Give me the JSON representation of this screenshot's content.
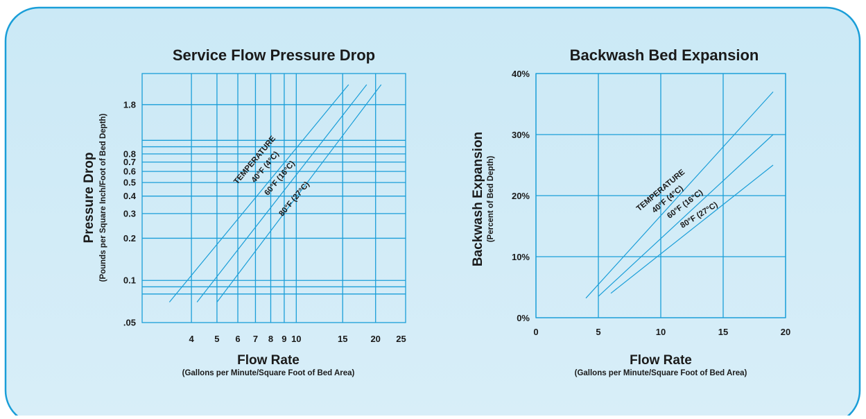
{
  "colors": {
    "panel_top": "#cbe9f6",
    "panel_bottom": "#d8eef8",
    "panel_border": "#1a9ed8",
    "grid": "#1a9ed8",
    "line": "#1a9ed8",
    "text": "#1a1a1a"
  },
  "chart_data": [
    {
      "type": "line",
      "title": "Service Flow Pressure Drop",
      "xlabel": "Flow Rate",
      "xlabel_sub": "(Gallons per Minute/Square Foot of Bed Area)",
      "ylabel": "Pressure Drop",
      "ylabel_sub": "(Pounds per Square Inch/Foot of Bed Depth)",
      "x_scale": "log",
      "y_scale": "log",
      "xlim": [
        2.6,
        26
      ],
      "ylim": [
        0.05,
        3
      ],
      "x_ticks": [
        4,
        5,
        6,
        7,
        8,
        9,
        10,
        15,
        20,
        25
      ],
      "x_tick_labels": [
        "4",
        "5",
        "6",
        "7",
        "8",
        "9",
        "10",
        "15",
        "20",
        "25"
      ],
      "x_grid": [
        4,
        5,
        6,
        7,
        8,
        9,
        10,
        15,
        20
      ],
      "y_ticks": [
        0.05,
        0.1,
        0.2,
        0.3,
        0.4,
        0.5,
        0.6,
        0.7,
        0.8,
        1.8
      ],
      "y_tick_labels": [
        ".05",
        "0.1",
        "0.2",
        "0.3",
        "0.4",
        "0.5",
        "0.6",
        "0.7",
        "0.8",
        "1.8"
      ],
      "y_grid": [
        0.08,
        0.09,
        0.1,
        0.2,
        0.3,
        0.4,
        0.5,
        0.6,
        0.7,
        0.8,
        0.9,
        1.0,
        1.8
      ],
      "grid": true,
      "annotations": [
        "TEMPERATURE"
      ],
      "series": [
        {
          "name": "40°F (4°C)",
          "x": [
            3.3,
            15.8
          ],
          "y": [
            0.07,
            2.5
          ]
        },
        {
          "name": "60°F (16°C)",
          "x": [
            4.2,
            18.5
          ],
          "y": [
            0.07,
            2.5
          ]
        },
        {
          "name": "80°F (27°C)",
          "x": [
            5.0,
            21.0
          ],
          "y": [
            0.07,
            2.5
          ]
        }
      ]
    },
    {
      "type": "line",
      "title": "Backwash Bed Expansion",
      "xlabel": "Flow Rate",
      "xlabel_sub": "(Gallons per Minute/Square Foot of Bed Area)",
      "ylabel": "Backwash Expansion",
      "ylabel_sub": "(Percent of Bed Depth)",
      "x_scale": "linear",
      "y_scale": "linear",
      "xlim": [
        0,
        20
      ],
      "ylim": [
        0,
        40
      ],
      "x_ticks": [
        0,
        5,
        10,
        15,
        20
      ],
      "x_tick_labels": [
        "0",
        "5",
        "10",
        "15",
        "20"
      ],
      "y_ticks": [
        0,
        10,
        20,
        30,
        40
      ],
      "y_tick_labels": [
        "0%",
        "10%",
        "20%",
        "30%",
        "40%"
      ],
      "grid": true,
      "annotations": [
        "TEMPERATURE"
      ],
      "series": [
        {
          "name": "40°F (4°C)",
          "x": [
            4.0,
            19.0
          ],
          "y": [
            3.2,
            37.0
          ]
        },
        {
          "name": "60°F (16°C)",
          "x": [
            5.0,
            19.0
          ],
          "y": [
            3.5,
            30.0
          ]
        },
        {
          "name": "80°F (27°C)",
          "x": [
            6.0,
            19.0
          ],
          "y": [
            4.0,
            25.0
          ]
        }
      ]
    }
  ]
}
